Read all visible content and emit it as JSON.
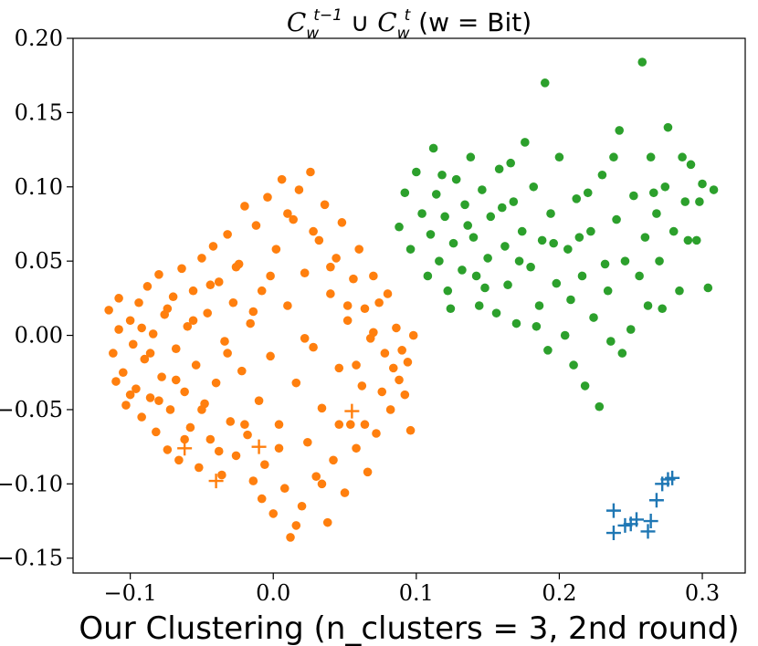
{
  "chart_data": {
    "type": "scatter",
    "title": "C_w^{t-1} ∪ C_w^t (w = Bit)",
    "title_parts": {
      "c1": "C",
      "sub1": "w",
      "sup1": "t−1",
      "union": " ∪ ",
      "c2": "C",
      "sub2": "w",
      "sup2": "t",
      "rest": " (w = Bit)"
    },
    "xlabel": "Our Clustering (n_clusters = 3, 2nd round)",
    "ylabel": "",
    "xlim": [
      -0.14,
      0.33
    ],
    "ylim": [
      -0.16,
      0.2
    ],
    "xticks": [
      -0.1,
      0.0,
      0.1,
      0.2,
      0.3
    ],
    "xtick_labels": [
      "−0.1",
      "0.0",
      "0.1",
      "0.2",
      "0.3"
    ],
    "yticks": [
      -0.15,
      -0.1,
      -0.05,
      0.0,
      0.05,
      0.1,
      0.15,
      0.2
    ],
    "ytick_labels": [
      "−0.15",
      "−0.10",
      "−0.05",
      "0.00",
      "0.05",
      "0.10",
      "0.15",
      "0.20"
    ],
    "series": [
      {
        "name": "cluster-orange",
        "color": "#ff7f0e",
        "marker": "circle",
        "points": [
          [
            -0.115,
            0.017
          ],
          [
            -0.112,
            -0.012
          ],
          [
            -0.11,
            -0.031
          ],
          [
            -0.108,
            0.004
          ],
          [
            -0.105,
            -0.025
          ],
          [
            -0.103,
            -0.047
          ],
          [
            -0.1,
            0.01
          ],
          [
            -0.098,
            -0.006
          ],
          [
            -0.096,
            -0.036
          ],
          [
            -0.094,
            0.022
          ],
          [
            -0.092,
            -0.055
          ],
          [
            -0.09,
            -0.016
          ],
          [
            -0.088,
            0.033
          ],
          [
            -0.086,
            -0.042
          ],
          [
            -0.084,
            0.001
          ],
          [
            -0.082,
            -0.065
          ],
          [
            -0.08,
            0.041
          ],
          [
            -0.078,
            -0.028
          ],
          [
            -0.076,
            0.014
          ],
          [
            -0.074,
            -0.077
          ],
          [
            -0.072,
            -0.05
          ],
          [
            -0.07,
            0.026
          ],
          [
            -0.068,
            -0.009
          ],
          [
            -0.066,
            -0.084
          ],
          [
            -0.064,
            0.045
          ],
          [
            -0.062,
            -0.038
          ],
          [
            -0.06,
            0.006
          ],
          [
            -0.058,
            -0.062
          ],
          [
            -0.056,
            0.03
          ],
          [
            -0.054,
            -0.02
          ],
          [
            -0.052,
            -0.089
          ],
          [
            -0.05,
            0.052
          ],
          [
            -0.048,
            -0.046
          ],
          [
            -0.046,
            0.015
          ],
          [
            -0.044,
            -0.07
          ],
          [
            -0.042,
            0.06
          ],
          [
            -0.04,
            -0.032
          ],
          [
            -0.038,
            0.036
          ],
          [
            -0.036,
            -0.094
          ],
          [
            -0.034,
            -0.004
          ],
          [
            -0.032,
            0.068
          ],
          [
            -0.03,
            -0.058
          ],
          [
            -0.028,
            0.022
          ],
          [
            -0.026,
            -0.081
          ],
          [
            -0.024,
            0.048
          ],
          [
            -0.022,
            -0.024
          ],
          [
            -0.02,
            0.087
          ],
          [
            -0.018,
            -0.067
          ],
          [
            -0.016,
            0.008
          ],
          [
            -0.014,
            -0.098
          ],
          [
            -0.012,
            0.074
          ],
          [
            -0.01,
            -0.044
          ],
          [
            -0.008,
            0.03
          ],
          [
            -0.006,
            -0.087
          ],
          [
            -0.004,
            0.093
          ],
          [
            -0.002,
            -0.014
          ],
          [
            0.0,
            -0.12
          ],
          [
            0.002,
            0.058
          ],
          [
            0.004,
            -0.06
          ],
          [
            0.006,
            0.105
          ],
          [
            0.008,
            -0.103
          ],
          [
            0.01,
            0.02
          ],
          [
            0.012,
            -0.136
          ],
          [
            0.014,
            0.078
          ],
          [
            0.016,
            -0.032
          ],
          [
            0.018,
            0.098
          ],
          [
            0.02,
            -0.115
          ],
          [
            0.022,
            0.042
          ],
          [
            0.024,
            -0.072
          ],
          [
            0.026,
            0.11
          ],
          [
            0.028,
            -0.008
          ],
          [
            0.03,
            -0.095
          ],
          [
            0.032,
            0.064
          ],
          [
            0.034,
            -0.049
          ],
          [
            0.036,
            0.088
          ],
          [
            0.038,
            -0.126
          ],
          [
            0.04,
            0.028
          ],
          [
            0.042,
            -0.084
          ],
          [
            0.044,
            0.052
          ],
          [
            0.046,
            -0.022
          ],
          [
            0.048,
            0.076
          ],
          [
            0.05,
            -0.106
          ],
          [
            0.052,
            0.01
          ],
          [
            0.054,
            -0.06
          ],
          [
            0.056,
            0.038
          ],
          [
            0.058,
            -0.076
          ],
          [
            0.06,
            0.058
          ],
          [
            0.062,
            -0.034
          ],
          [
            0.064,
            0.018
          ],
          [
            0.066,
            -0.092
          ],
          [
            0.068,
            -0.002
          ],
          [
            0.07,
            0.04
          ],
          [
            0.072,
            -0.066
          ],
          [
            0.074,
            0.022
          ],
          [
            0.076,
            -0.038
          ],
          [
            0.078,
            -0.012
          ],
          [
            0.08,
            0.028
          ],
          [
            0.082,
            -0.05
          ],
          [
            0.084,
            -0.022
          ],
          [
            0.086,
            0.005
          ],
          [
            0.088,
            -0.03
          ],
          [
            0.09,
            -0.01
          ],
          [
            0.092,
            -0.04
          ],
          [
            0.094,
            -0.018
          ],
          [
            0.096,
            -0.064
          ],
          [
            0.098,
            0.0
          ],
          [
            -0.108,
            0.025
          ],
          [
            -0.1,
            -0.04
          ],
          [
            -0.092,
            0.005
          ],
          [
            -0.086,
            -0.012
          ],
          [
            -0.08,
            -0.044
          ],
          [
            -0.074,
            0.018
          ],
          [
            -0.068,
            -0.03
          ],
          [
            -0.062,
            -0.07
          ],
          [
            -0.056,
            0.01
          ],
          [
            -0.05,
            -0.05
          ],
          [
            -0.044,
            0.034
          ],
          [
            -0.038,
            -0.078
          ],
          [
            -0.032,
            -0.012
          ],
          [
            -0.026,
            0.046
          ],
          [
            -0.02,
            -0.06
          ],
          [
            -0.014,
            0.016
          ],
          [
            -0.008,
            -0.11
          ],
          [
            -0.002,
            0.04
          ],
          [
            0.004,
            -0.076
          ],
          [
            0.01,
            0.082
          ],
          [
            0.016,
            -0.128
          ],
          [
            0.022,
            -0.002
          ],
          [
            0.028,
            0.07
          ],
          [
            0.034,
            -0.1
          ],
          [
            0.04,
            0.046
          ],
          [
            0.046,
            -0.06
          ],
          [
            0.052,
            0.02
          ],
          [
            0.058,
            -0.02
          ],
          [
            0.064,
            -0.06
          ],
          [
            0.07,
            0.002
          ]
        ]
      },
      {
        "name": "cluster-green",
        "color": "#2ca02c",
        "marker": "circle",
        "points": [
          [
            0.088,
            0.073
          ],
          [
            0.092,
            0.096
          ],
          [
            0.096,
            0.058
          ],
          [
            0.1,
            0.11
          ],
          [
            0.104,
            0.082
          ],
          [
            0.108,
            0.04
          ],
          [
            0.11,
            0.068
          ],
          [
            0.114,
            0.095
          ],
          [
            0.116,
            0.05
          ],
          [
            0.12,
            0.08
          ],
          [
            0.122,
            0.03
          ],
          [
            0.126,
            0.062
          ],
          [
            0.128,
            0.105
          ],
          [
            0.132,
            0.044
          ],
          [
            0.134,
            0.088
          ],
          [
            0.138,
            0.12
          ],
          [
            0.14,
            0.066
          ],
          [
            0.144,
            0.02
          ],
          [
            0.146,
            0.098
          ],
          [
            0.15,
            0.052
          ],
          [
            0.152,
            0.08
          ],
          [
            0.156,
            0.015
          ],
          [
            0.158,
            0.112
          ],
          [
            0.162,
            0.06
          ],
          [
            0.164,
            0.034
          ],
          [
            0.168,
            0.09
          ],
          [
            0.17,
            0.008
          ],
          [
            0.174,
            0.07
          ],
          [
            0.176,
            0.13
          ],
          [
            0.18,
            0.046
          ],
          [
            0.182,
            0.1
          ],
          [
            0.186,
            0.02
          ],
          [
            0.188,
            0.064
          ],
          [
            0.192,
            -0.01
          ],
          [
            0.194,
            0.082
          ],
          [
            0.198,
            0.035
          ],
          [
            0.2,
            0.12
          ],
          [
            0.204,
            0.0
          ],
          [
            0.206,
            0.058
          ],
          [
            0.21,
            -0.02
          ],
          [
            0.212,
            0.092
          ],
          [
            0.216,
            0.04
          ],
          [
            0.218,
            -0.034
          ],
          [
            0.222,
            0.07
          ],
          [
            0.224,
            0.012
          ],
          [
            0.228,
            -0.048
          ],
          [
            0.23,
            0.108
          ],
          [
            0.234,
            0.03
          ],
          [
            0.236,
            -0.004
          ],
          [
            0.24,
            0.078
          ],
          [
            0.242,
            0.138
          ],
          [
            0.246,
            0.05
          ],
          [
            0.25,
            0.004
          ],
          [
            0.252,
            0.094
          ],
          [
            0.256,
            0.04
          ],
          [
            0.258,
            0.184
          ],
          [
            0.262,
            0.02
          ],
          [
            0.264,
            0.12
          ],
          [
            0.268,
            0.082
          ],
          [
            0.27,
            0.05
          ],
          [
            0.274,
            0.1
          ],
          [
            0.276,
            0.14
          ],
          [
            0.28,
            0.07
          ],
          [
            0.284,
            0.03
          ],
          [
            0.288,
            0.09
          ],
          [
            0.292,
            0.115
          ],
          [
            0.296,
            0.064
          ],
          [
            0.3,
            0.102
          ],
          [
            0.304,
            0.032
          ],
          [
            0.308,
            0.098
          ],
          [
            0.118,
            0.108
          ],
          [
            0.124,
            0.018
          ],
          [
            0.136,
            0.074
          ],
          [
            0.148,
            0.032
          ],
          [
            0.16,
            0.086
          ],
          [
            0.172,
            0.05
          ],
          [
            0.184,
            0.006
          ],
          [
            0.196,
            0.062
          ],
          [
            0.208,
            0.024
          ],
          [
            0.22,
            0.096
          ],
          [
            0.232,
            0.048
          ],
          [
            0.244,
            -0.012
          ],
          [
            0.26,
            0.066
          ],
          [
            0.272,
            0.018
          ],
          [
            0.286,
            0.12
          ],
          [
            0.298,
            0.09
          ],
          [
            0.112,
            0.126
          ],
          [
            0.142,
            0.04
          ],
          [
            0.166,
            0.116
          ],
          [
            0.19,
            0.17
          ],
          [
            0.214,
            0.066
          ],
          [
            0.238,
            0.12
          ],
          [
            0.266,
            0.096
          ],
          [
            0.29,
            0.064
          ]
        ]
      },
      {
        "name": "cluster-blue",
        "color": "#1f77b4",
        "marker": "plus",
        "points": [
          [
            0.238,
            -0.118
          ],
          [
            0.238,
            -0.133
          ],
          [
            0.246,
            -0.128
          ],
          [
            0.25,
            -0.127
          ],
          [
            0.254,
            -0.124
          ],
          [
            0.262,
            -0.132
          ],
          [
            0.264,
            -0.125
          ],
          [
            0.268,
            -0.111
          ],
          [
            0.272,
            -0.1
          ],
          [
            0.276,
            -0.097
          ],
          [
            0.279,
            -0.096
          ]
        ]
      },
      {
        "name": "cluster-orange-plus",
        "color": "#ff7f0e",
        "marker": "plus",
        "points": [
          [
            0.055,
            -0.051
          ],
          [
            -0.062,
            -0.076
          ],
          [
            -0.04,
            -0.098
          ],
          [
            -0.01,
            -0.075
          ]
        ]
      }
    ]
  }
}
